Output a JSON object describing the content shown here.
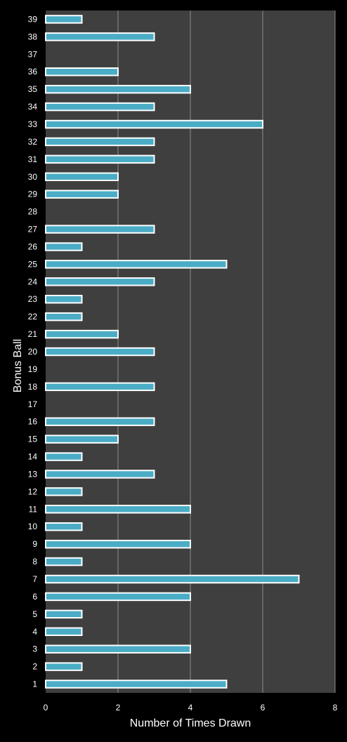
{
  "chart_data": {
    "type": "bar",
    "orientation": "horizontal",
    "title": "",
    "xlabel": "Number of Times Drawn",
    "ylabel": "Bonus Ball",
    "xlim": [
      0,
      8
    ],
    "xticks": [
      0,
      2,
      4,
      6,
      8
    ],
    "grid": true,
    "legend": "none",
    "colors": {
      "background": "#000000",
      "plot_area": "#3f3f3f",
      "bar_fill": "#4bacc6",
      "bar_outline": "#ffffff",
      "gridline": "#8c8c8c",
      "text": "#ffffff"
    },
    "categories": [
      "1",
      "2",
      "3",
      "4",
      "5",
      "6",
      "7",
      "8",
      "9",
      "10",
      "11",
      "12",
      "13",
      "14",
      "15",
      "16",
      "17",
      "18",
      "19",
      "20",
      "21",
      "22",
      "23",
      "24",
      "25",
      "26",
      "27",
      "28",
      "29",
      "30",
      "31",
      "32",
      "33",
      "34",
      "35",
      "36",
      "37",
      "38",
      "39"
    ],
    "values": [
      5,
      1,
      4,
      1,
      1,
      4,
      7,
      1,
      4,
      1,
      4,
      1,
      3,
      1,
      2,
      3,
      0,
      3,
      0,
      3,
      2,
      1,
      1,
      3,
      5,
      1,
      3,
      0,
      2,
      2,
      3,
      3,
      6,
      3,
      4,
      2,
      0,
      3,
      1
    ]
  }
}
